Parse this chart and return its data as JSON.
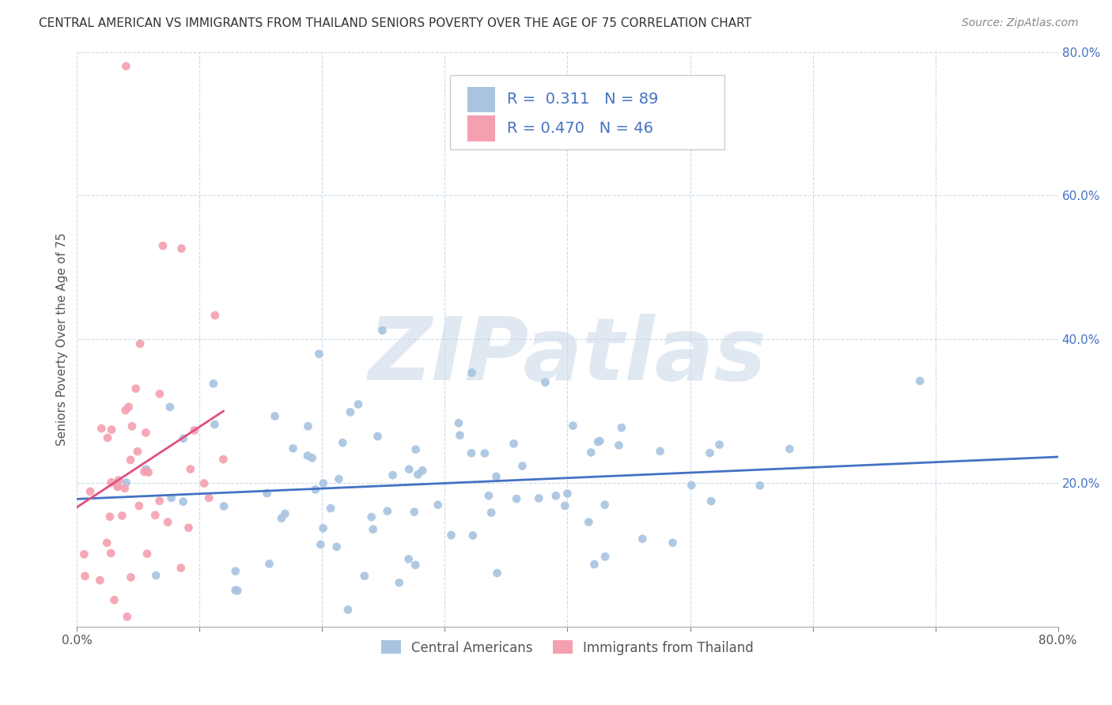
{
  "title": "CENTRAL AMERICAN VS IMMIGRANTS FROM THAILAND SENIORS POVERTY OVER THE AGE OF 75 CORRELATION CHART",
  "source": "Source: ZipAtlas.com",
  "ylabel": "Seniors Poverty Over the Age of 75",
  "xlim": [
    0,
    0.8
  ],
  "ylim": [
    0,
    0.8
  ],
  "xticks": [
    0.0,
    0.1,
    0.2,
    0.3,
    0.4,
    0.5,
    0.6,
    0.7,
    0.8
  ],
  "xtick_labels_show": [
    "0.0%",
    "",
    "",
    "",
    "",
    "",
    "",
    "",
    "80.0%"
  ],
  "ytick_labels": [
    "20.0%",
    "40.0%",
    "60.0%",
    "80.0%"
  ],
  "yticks": [
    0.2,
    0.4,
    0.6,
    0.8
  ],
  "group1_color": "#a8c4e0",
  "group2_color": "#f4a0b0",
  "trendline1_color": "#4472c4",
  "trendline2_color": "#e05080",
  "watermark": "ZIPatlas",
  "watermark_color": "#c8d8e8",
  "group1_label": "Central Americans",
  "group2_label": "Immigrants from Thailand",
  "R1": 0.311,
  "N1": 89,
  "R2": 0.47,
  "N2": 46,
  "seed": 42,
  "background_color": "#ffffff",
  "grid_color": "#c8d8e8",
  "title_fontsize": 11,
  "axis_label_fontsize": 11,
  "tick_fontsize": 11,
  "legend_fontsize": 14,
  "source_fontsize": 10
}
